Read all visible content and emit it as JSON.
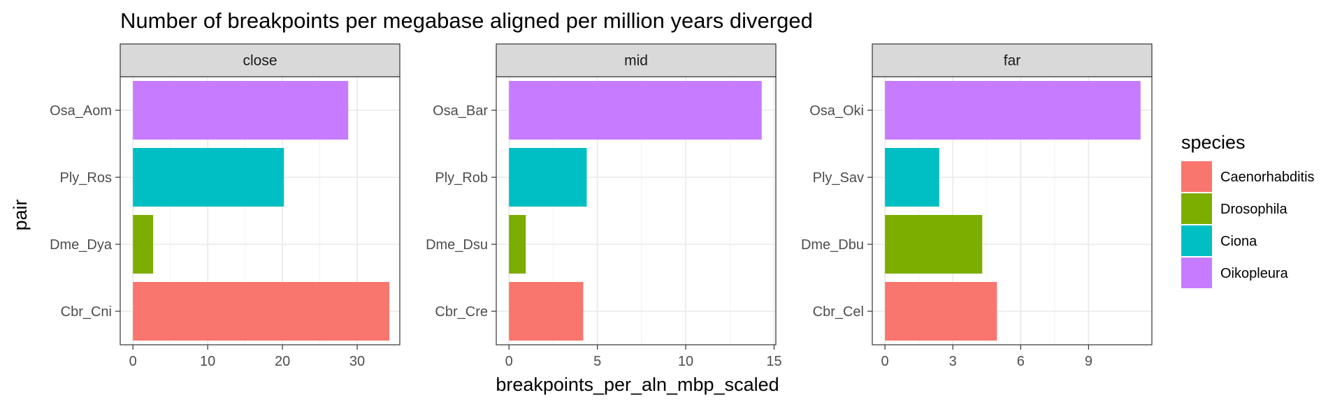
{
  "chart_data": {
    "type": "bar",
    "orientation": "horizontal",
    "title": "Number of breakpoints per megabase aligned per million years diverged",
    "xlabel": "breakpoints_per_aln_mbp_scaled",
    "ylabel": "pair",
    "legend": {
      "title": "species",
      "position": "right",
      "entries": [
        {
          "name": "Caenorhabditis",
          "color": "#F8766D"
        },
        {
          "name": "Drosophila",
          "color": "#7CAE00"
        },
        {
          "name": "Ciona",
          "color": "#00BFC4"
        },
        {
          "name": "Oikopleura",
          "color": "#C77CFF"
        }
      ]
    },
    "grid": true,
    "panels": [
      {
        "label": "close",
        "xlim": [
          -1.7,
          35.7
        ],
        "xticks": [
          0,
          10,
          20,
          30
        ],
        "bars": [
          {
            "pair": "Osa_Aom",
            "species": "Oikopleura",
            "value": 28.8
          },
          {
            "pair": "Ply_Ros",
            "species": "Ciona",
            "value": 20.2
          },
          {
            "pair": "Dme_Dya",
            "species": "Drosophila",
            "value": 2.7
          },
          {
            "pair": "Cbr_Cni",
            "species": "Caenorhabditis",
            "value": 34.3
          }
        ]
      },
      {
        "label": "mid",
        "xlim": [
          -0.72,
          15.1
        ],
        "xticks": [
          0,
          5,
          10,
          15
        ],
        "bars": [
          {
            "pair": "Osa_Bar",
            "species": "Oikopleura",
            "value": 14.3
          },
          {
            "pair": "Ply_Rob",
            "species": "Ciona",
            "value": 4.4
          },
          {
            "pair": "Dme_Dsu",
            "species": "Drosophila",
            "value": 0.95
          },
          {
            "pair": "Cbr_Cre",
            "species": "Caenorhabditis",
            "value": 4.2
          }
        ]
      },
      {
        "label": "far",
        "xlim": [
          -0.56,
          11.8
        ],
        "xticks": [
          0,
          3,
          6,
          9
        ],
        "bars": [
          {
            "pair": "Osa_Oki",
            "species": "Oikopleura",
            "value": 11.3
          },
          {
            "pair": "Ply_Sav",
            "species": "Ciona",
            "value": 2.4
          },
          {
            "pair": "Dme_Dbu",
            "species": "Drosophila",
            "value": 4.3
          },
          {
            "pair": "Cbr_Cel",
            "species": "Caenorhabditis",
            "value": 4.95
          }
        ]
      }
    ]
  }
}
